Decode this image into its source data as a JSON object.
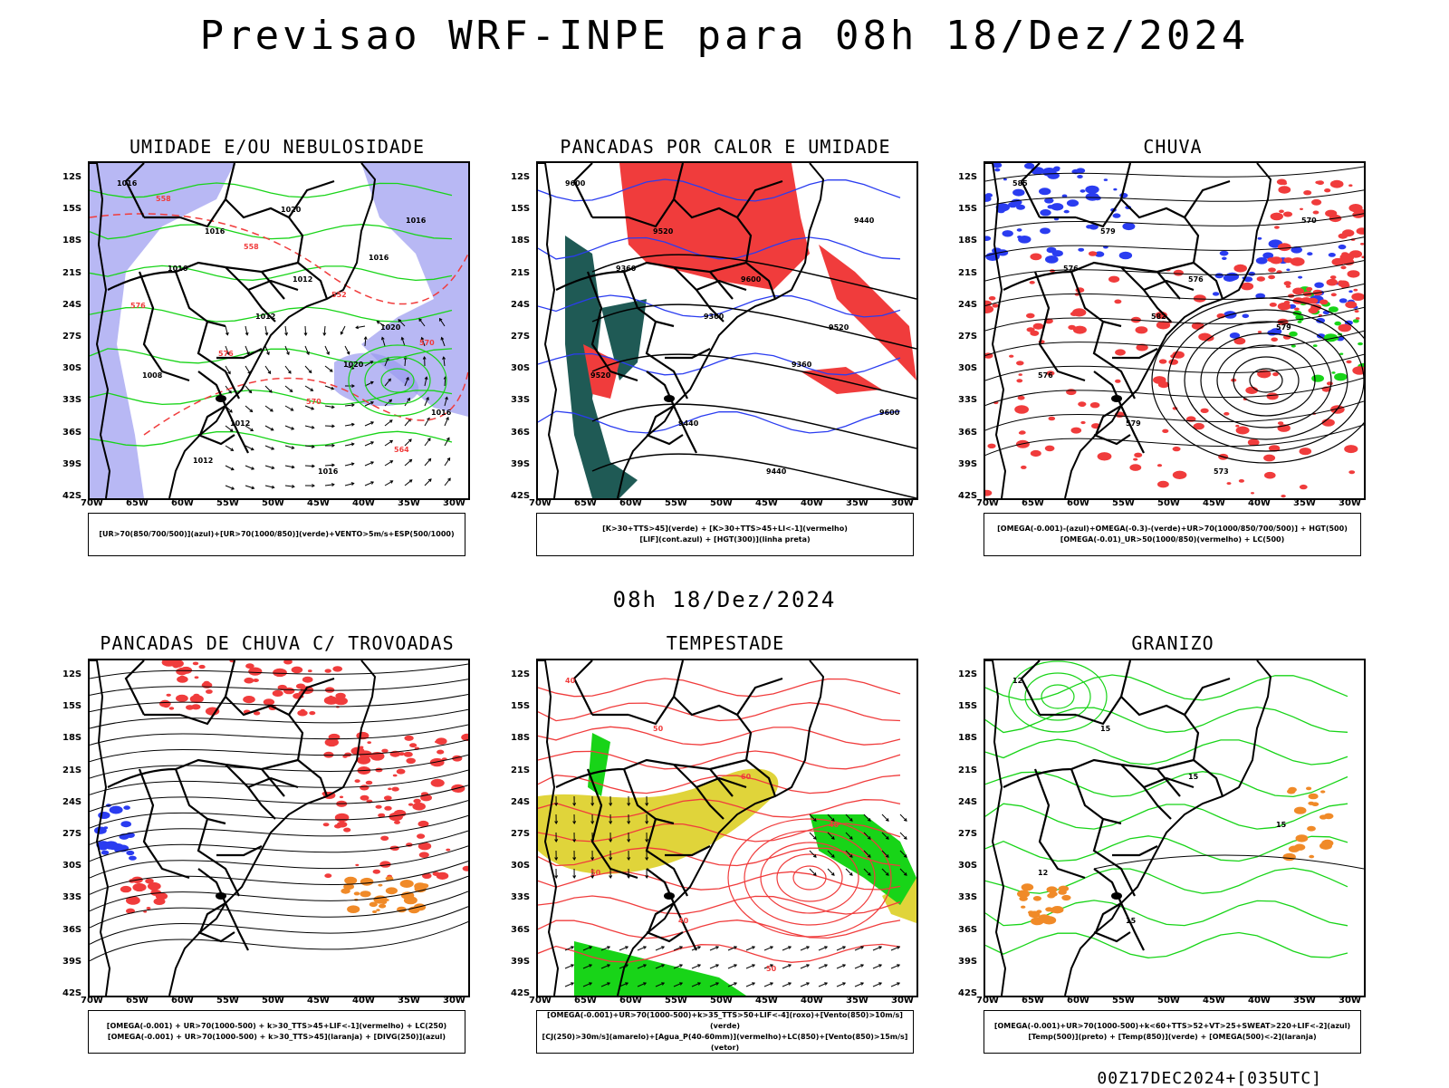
{
  "title": "Previsao WRF-INPE  para 08h 18/Dez/2024",
  "subtitle": "08h 18/Dez/2024",
  "footer": "00Z17DEC2024+[035UTC]",
  "axis": {
    "lat_labels": [
      "12S",
      "15S",
      "18S",
      "21S",
      "24S",
      "27S",
      "30S",
      "33S",
      "36S",
      "39S",
      "42S"
    ],
    "lon_labels": [
      "70W",
      "65W",
      "60W",
      "55W",
      "50W",
      "45W",
      "40W",
      "35W",
      "30W"
    ]
  },
  "panels": [
    {
      "title": "UMIDADE E/OU NEBULOSIDADE",
      "legend": [
        "[UR>70(850/700/500)](azul)+[UR>70(1000/850)](verde)+VENTO>5m/s+ESP(500/1000)"
      ],
      "labels": [
        "1016",
        "1016",
        "1012",
        "1020",
        "1008",
        "1012",
        "1016",
        "1016",
        "1016",
        "1012",
        "1020",
        "1016",
        "1012",
        "1020",
        "1016",
        "576",
        "576",
        "570",
        "564",
        "558",
        "558",
        "552",
        "570"
      ]
    },
    {
      "title": "PANCADAS POR CALOR E UMIDADE",
      "legend": [
        "[K>30+TTS>45](verde) + [K>30+TTS>45+LI<-1](vermelho)",
        "[LIF](cont.azul) + [HGT(300)](linha preta)"
      ],
      "labels": [
        "9600",
        "9520",
        "9600",
        "9520",
        "9520",
        "9440",
        "9440",
        "9440",
        "9360",
        "9360",
        "9360",
        "9600"
      ]
    },
    {
      "title": "CHUVA",
      "legend": [
        "[OMEGA(-0.001)-(azul)+OMEGA(-0.3)-(verde)+UR>70(1000/850/700/500)] + HGT(500)",
        "[OMEGA(-0.01)_UR>50(1000/850)(vermelho) + LC(500)"
      ],
      "labels": [
        "585",
        "579",
        "576",
        "579",
        "576",
        "579",
        "573",
        "570",
        "576",
        "582"
      ]
    },
    {
      "title": "PANCADAS DE CHUVA C/ TROVOADAS",
      "legend": [
        "[OMEGA(-0.001) + UR>70(1000-500) + k>30_TTS>45+LIF<-1](vermelho) + LC(250)",
        "[OMEGA(-0.001) + UR>70(1000-500) + k>30_TTS>45](laranja) + [DIVG(250)](azul)"
      ],
      "labels": []
    },
    {
      "title": "TEMPESTADE",
      "legend": [
        "[OMEGA(-0.001)+UR>70(1000-500)+k>35_TTS>50+LIF<-4](roxo)+[Vento(850)>10m/s](verde)",
        "[CJ(250)>30m/s](amarelo)+[Agua_P(40-60mm)](vermelho)+LC(850)+[Vento(850)>15m/s](vetor)"
      ],
      "labels": [
        "40",
        "50",
        "60",
        "40",
        "50",
        "40",
        "50"
      ]
    },
    {
      "title": "GRANIZO",
      "legend": [
        "[OMEGA(-0.001)+UR>70(1000-500)+k<60+TTS>52+VT>25+SWEAT>220+LIF<-2](azul)",
        "[Temp(500)](preto) + [Temp(850)](verde) + [OMEGA(500)<-2](laranja)"
      ],
      "labels": [
        "12",
        "15",
        "15",
        "15",
        "12",
        "15"
      ]
    }
  ],
  "colors": {
    "blue": "#2a3cf0",
    "green": "#18d418",
    "red": "#f03c3c",
    "lavender": "#9a9af0",
    "teal": "#1f5a55",
    "yellow": "#e0d43a",
    "orange": "#f08a28",
    "black": "#000000"
  }
}
